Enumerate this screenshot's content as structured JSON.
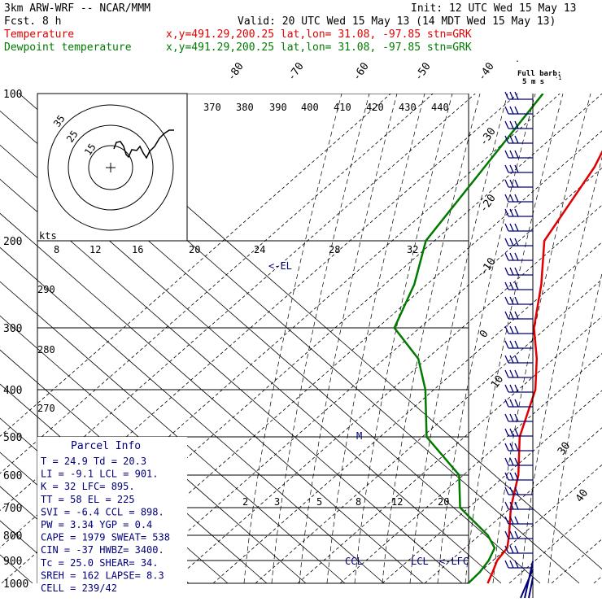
{
  "header": {
    "model": "3km ARW-WRF -- NCAR/MMM",
    "init": "Init: 12 UTC Wed 15 May 13",
    "fcst": "Fcst.    8 h",
    "valid": "Valid: 20 UTC Wed 15 May 13 (14 MDT Wed 15 May 13)"
  },
  "legend": [
    {
      "name": "Temperature",
      "info": "x,y=491.29,200.25   lat,lon= 31.08, -97.85  stn=GRK",
      "color": "#e00000"
    },
    {
      "name": "Dewpoint temperature",
      "info": "x,y=491.29,200.25   lat,lon= 31.08, -97.85  stn=GRK",
      "color": "#007a00"
    }
  ],
  "barb_note": {
    "line1": "Full barb:",
    "line2": "5 m s",
    "sup": "-1"
  },
  "parcel_info": {
    "title": "Parcel Info",
    "rows": [
      "T  =    24.9  Td =  20.3",
      "LI =    -9.1  LCL =  901.",
      "K  =      32  LFC=  895.",
      "TT =      58  EL  =  225",
      "SVI =  -6.4  CCL =  898.",
      "PW =   3.34  YGP =   0.4",
      "CAPE =  1979  SWEAT=  538",
      "CIN =    -37  HWBZ= 3400.",
      "Tc =   25.0  SHEAR=  34.",
      "SREH =   162  LAPSE=  8.3",
      "CELL = 239/42"
    ]
  },
  "chart_data": {
    "type": "line",
    "title": "",
    "xlabel": "",
    "ylabel": "",
    "pressure_levels": [
      100,
      200,
      300,
      400,
      500,
      600,
      700,
      800,
      900,
      1000
    ],
    "isotherm_labels": [
      -80,
      -70,
      -60,
      -50,
      -40,
      -30,
      -20,
      -10,
      0,
      10,
      30,
      40
    ],
    "theta_labels": [
      370,
      380,
      390,
      400,
      410,
      420,
      430,
      440,
      290,
      280,
      270
    ],
    "mixing_ratio_labels": [
      2,
      3,
      5,
      8,
      12,
      20
    ],
    "hodograph": {
      "units_label": "kts",
      "ring_labels": [
        15,
        25,
        35
      ],
      "speed_ticks": [
        8,
        12,
        16,
        20,
        24,
        28,
        32
      ]
    },
    "annotations": [
      "<-EL",
      "M",
      "CCL",
      "LCL",
      "<-LFC"
    ],
    "series": [
      {
        "name": "Temperature",
        "color": "#e00000",
        "points": [
          [
            100,
            -73
          ],
          [
            150,
            -62
          ],
          [
            200,
            -54
          ],
          [
            250,
            -43
          ],
          [
            300,
            -33
          ],
          [
            350,
            -24
          ],
          [
            400,
            -16
          ],
          [
            500,
            -7
          ],
          [
            600,
            3
          ],
          [
            700,
            10
          ],
          [
            800,
            17
          ],
          [
            850,
            20
          ],
          [
            900,
            21
          ],
          [
            950,
            23
          ],
          [
            1000,
            24.9
          ]
        ]
      },
      {
        "name": "Dewpoint temperature",
        "color": "#007a00",
        "points": [
          [
            100,
            -94
          ],
          [
            150,
            -88
          ],
          [
            200,
            -82
          ],
          [
            250,
            -73
          ],
          [
            300,
            -66
          ],
          [
            350,
            -52
          ],
          [
            400,
            -42
          ],
          [
            500,
            -29
          ],
          [
            600,
            -11
          ],
          [
            700,
            -2
          ],
          [
            800,
            12
          ],
          [
            850,
            17
          ],
          [
            900,
            19
          ],
          [
            950,
            20
          ],
          [
            1000,
            20.3
          ]
        ]
      }
    ]
  }
}
